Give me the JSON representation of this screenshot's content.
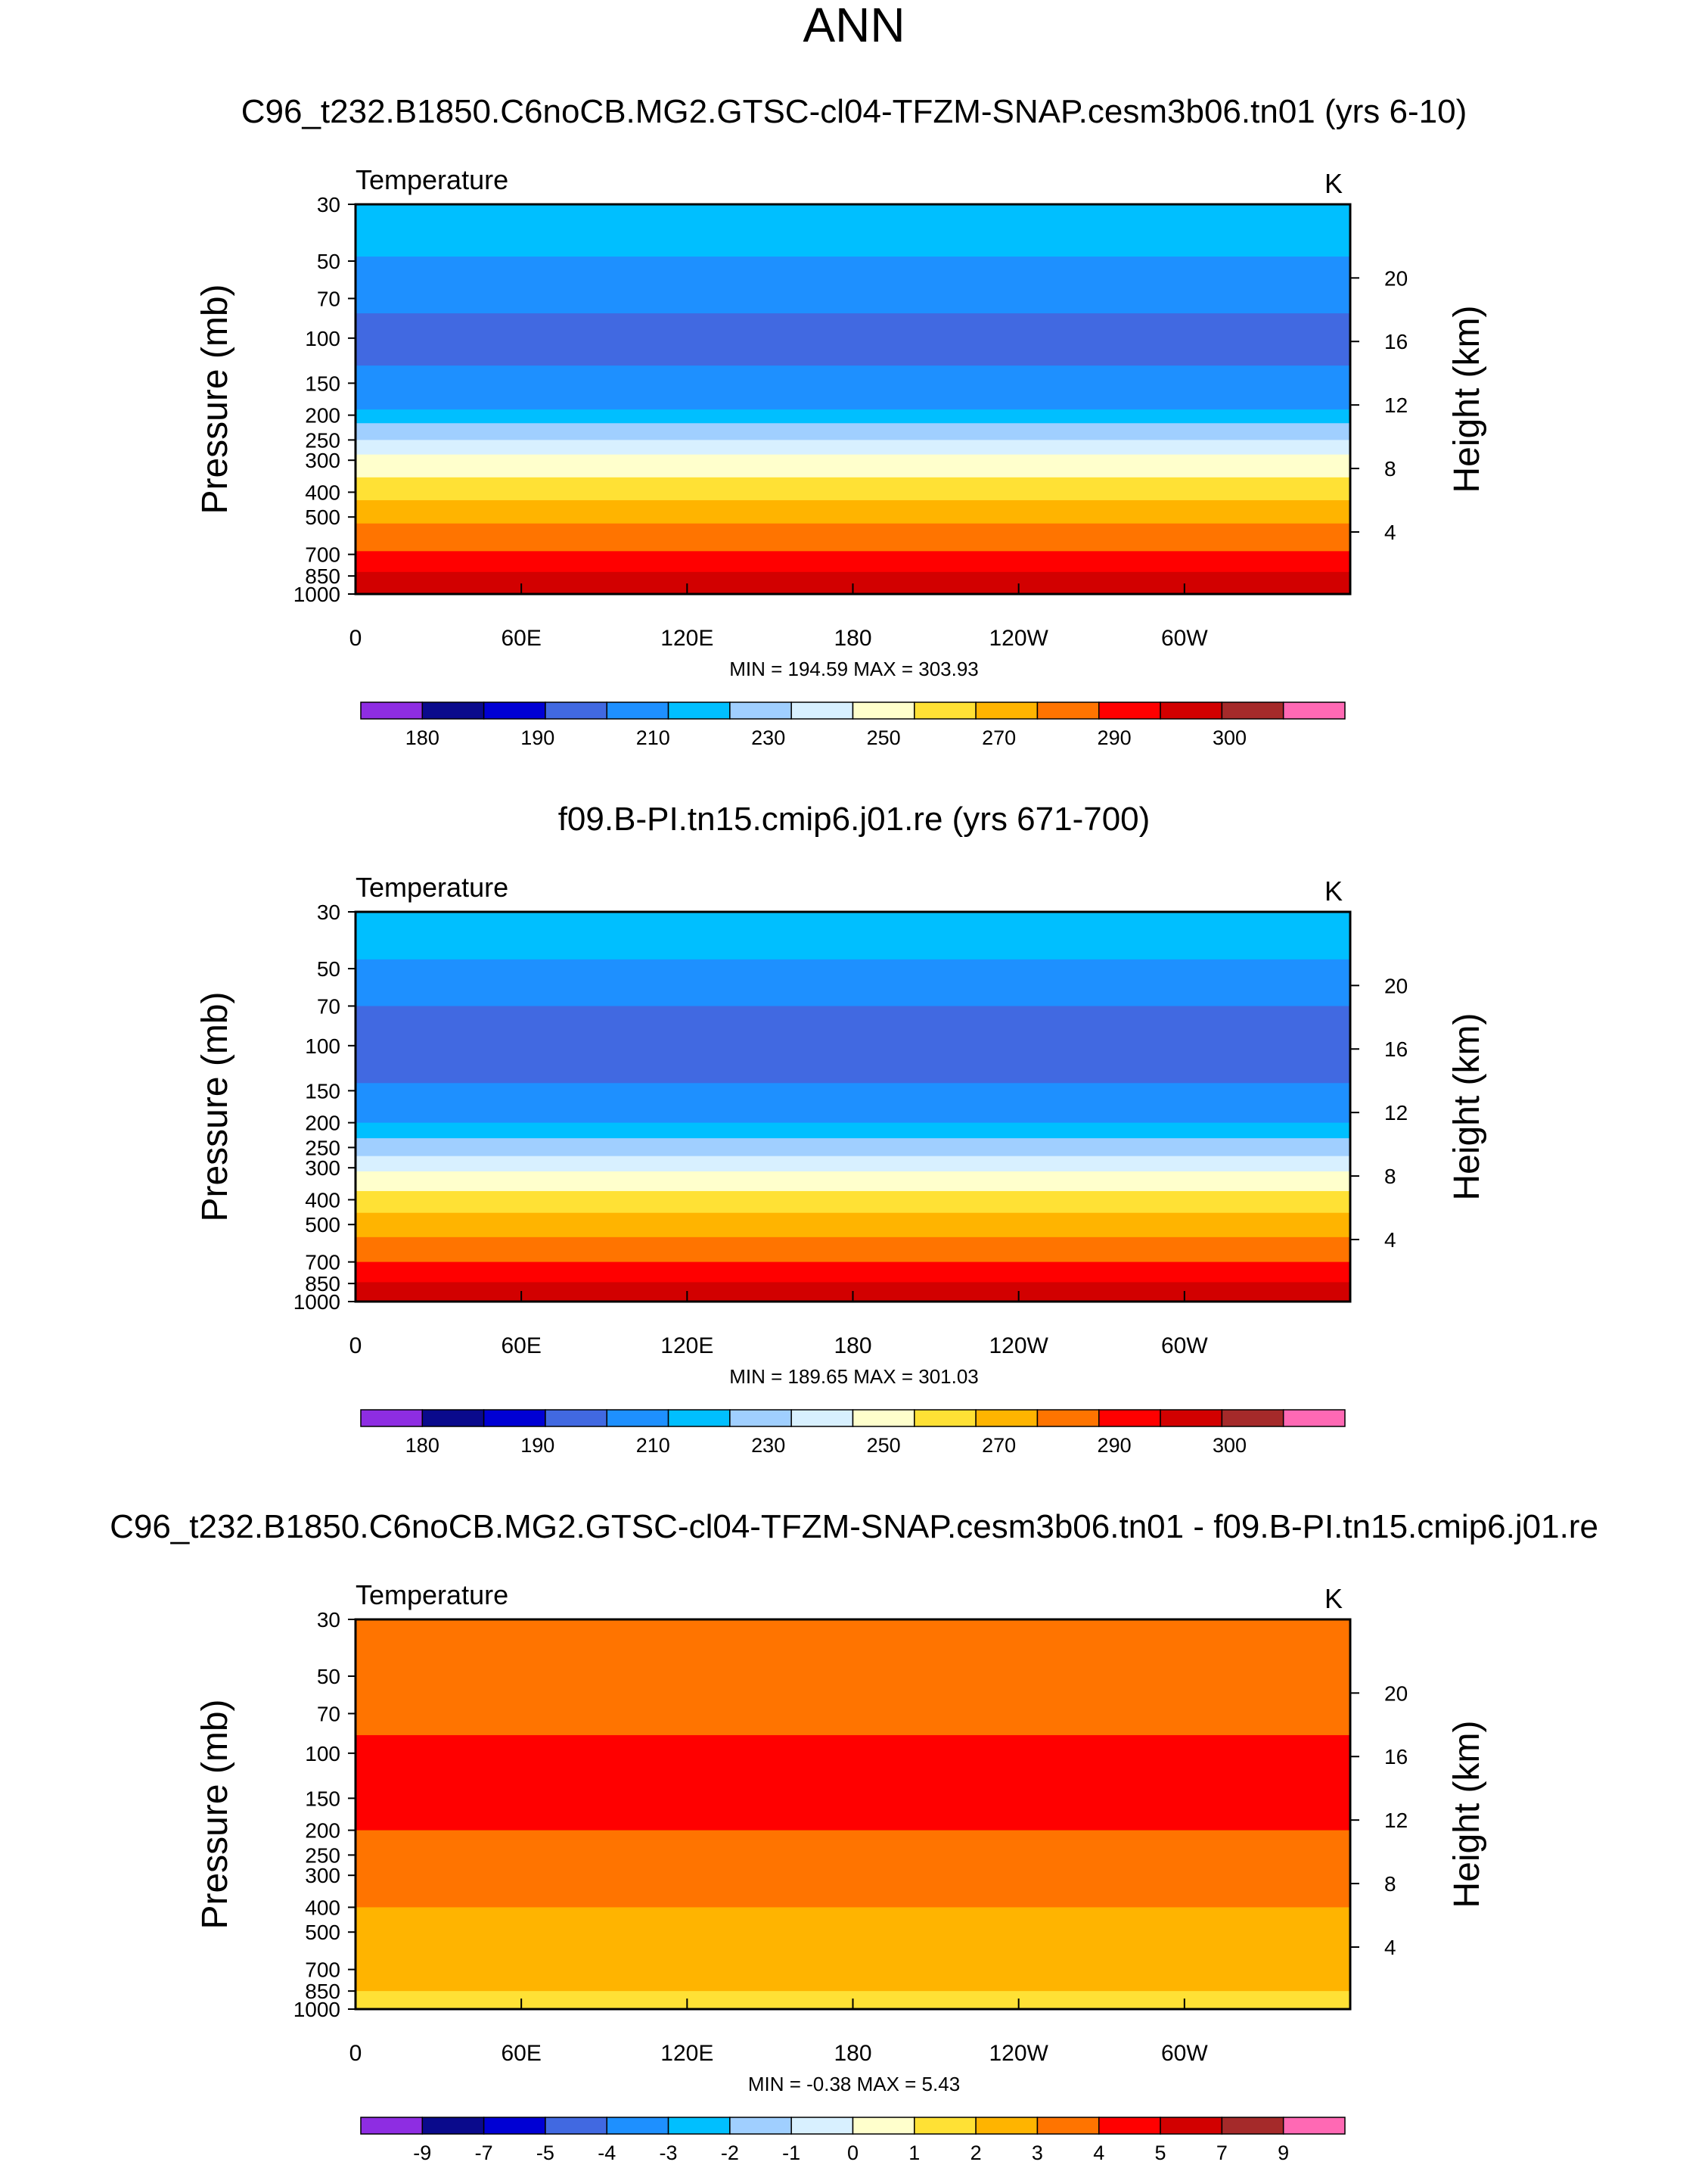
{
  "figure": {
    "title": "ANN"
  },
  "colors": {
    "abs_palette": [
      "#8e2de2",
      "#0a0a8c",
      "#0000d4",
      "#4169e1",
      "#1e90ff",
      "#00bfff",
      "#a0cfff",
      "#d8f0ff",
      "#ffffcc",
      "#ffe135",
      "#ffb400",
      "#ff7400",
      "#ff0000",
      "#d20000",
      "#a52a2a",
      "#ff69b4"
    ],
    "diff_palette": [
      "#8e2de2",
      "#0a0a8c",
      "#0000d4",
      "#4169e1",
      "#1e90ff",
      "#00bfff",
      "#a0cfff",
      "#d8f0ff",
      "#ffffcc",
      "#ffe135",
      "#ffb400",
      "#ff7400",
      "#ff0000",
      "#d20000",
      "#a52a2a",
      "#ff69b4"
    ]
  },
  "chart_data": [
    {
      "type": "heatmap",
      "panel_title": "C96_t232.B1850.C6noCB.MG2.GTSC-cl04-TFZM-SNAP.cesm3b06.tn01 (yrs 6-10)",
      "variable": "Temperature",
      "units": "K",
      "ylabel": "Pressure (mb)",
      "y2label": "Height (km)",
      "x_range_deg": [
        0,
        360
      ],
      "x_ticks": [
        {
          "deg": 0,
          "label": "0"
        },
        {
          "deg": 60,
          "label": "60E"
        },
        {
          "deg": 120,
          "label": "120E"
        },
        {
          "deg": 180,
          "label": "180"
        },
        {
          "deg": 240,
          "label": "120W"
        },
        {
          "deg": 300,
          "label": "60W"
        }
      ],
      "y_range_mb": [
        30,
        1000
      ],
      "y_ticks": [
        30,
        50,
        70,
        100,
        150,
        200,
        250,
        300,
        400,
        500,
        700,
        850,
        1000
      ],
      "y2_ticks_km": [
        20,
        16,
        12,
        8,
        4
      ],
      "stats": "MIN = 194.59  MAX = 303.93",
      "colorbar_labels": [
        "180",
        "190",
        "210",
        "230",
        "250",
        "270",
        "290",
        "300"
      ],
      "contour_bands": [
        {
          "p_top": 30,
          "p_bot": 48,
          "value": 215
        },
        {
          "p_top": 48,
          "p_bot": 80,
          "value": 205
        },
        {
          "p_top": 80,
          "p_bot": 128,
          "value": 195
        },
        {
          "p_top": 128,
          "p_bot": 190,
          "value": 205
        },
        {
          "p_top": 190,
          "p_bot": 215,
          "value": 215
        },
        {
          "p_top": 215,
          "p_bot": 250,
          "value": 225
        },
        {
          "p_top": 250,
          "p_bot": 285,
          "value": 235
        },
        {
          "p_top": 285,
          "p_bot": 350,
          "value": 245
        },
        {
          "p_top": 350,
          "p_bot": 430,
          "value": 255
        },
        {
          "p_top": 430,
          "p_bot": 530,
          "value": 265
        },
        {
          "p_top": 530,
          "p_bot": 680,
          "value": 275
        },
        {
          "p_top": 680,
          "p_bot": 820,
          "value": 285
        },
        {
          "p_top": 820,
          "p_bot": 1000,
          "value": 292
        }
      ]
    },
    {
      "type": "heatmap",
      "panel_title": "f09.B-PI.tn15.cmip6.j01.re (yrs 671-700)",
      "variable": "Temperature",
      "units": "K",
      "ylabel": "Pressure (mb)",
      "y2label": "Height (km)",
      "x_range_deg": [
        0,
        360
      ],
      "x_ticks": [
        {
          "deg": 0,
          "label": "0"
        },
        {
          "deg": 60,
          "label": "60E"
        },
        {
          "deg": 120,
          "label": "120E"
        },
        {
          "deg": 180,
          "label": "180"
        },
        {
          "deg": 240,
          "label": "120W"
        },
        {
          "deg": 300,
          "label": "60W"
        }
      ],
      "y_range_mb": [
        30,
        1000
      ],
      "y_ticks": [
        30,
        50,
        70,
        100,
        150,
        200,
        250,
        300,
        400,
        500,
        700,
        850,
        1000
      ],
      "y2_ticks_km": [
        20,
        16,
        12,
        8,
        4
      ],
      "stats": "MIN = 189.65  MAX = 301.03",
      "colorbar_labels": [
        "180",
        "190",
        "210",
        "230",
        "250",
        "270",
        "290",
        "300"
      ],
      "contour_bands": [
        {
          "p_top": 30,
          "p_bot": 46,
          "value": 215
        },
        {
          "p_top": 46,
          "p_bot": 70,
          "value": 205
        },
        {
          "p_top": 70,
          "p_bot": 140,
          "value": 195
        },
        {
          "p_top": 140,
          "p_bot": 200,
          "value": 205
        },
        {
          "p_top": 200,
          "p_bot": 230,
          "value": 215
        },
        {
          "p_top": 230,
          "p_bot": 270,
          "value": 225
        },
        {
          "p_top": 270,
          "p_bot": 310,
          "value": 235
        },
        {
          "p_top": 310,
          "p_bot": 370,
          "value": 245
        },
        {
          "p_top": 370,
          "p_bot": 450,
          "value": 255
        },
        {
          "p_top": 450,
          "p_bot": 560,
          "value": 265
        },
        {
          "p_top": 560,
          "p_bot": 700,
          "value": 275
        },
        {
          "p_top": 700,
          "p_bot": 840,
          "value": 285
        },
        {
          "p_top": 840,
          "p_bot": 1000,
          "value": 292
        }
      ]
    },
    {
      "type": "heatmap",
      "panel_title": "C96_t232.B1850.C6noCB.MG2.GTSC-cl04-TFZM-SNAP.cesm3b06.tn01 - f09.B-PI.tn15.cmip6.j01.re",
      "variable": "Temperature",
      "units": "K",
      "ylabel": "Pressure (mb)",
      "y2label": "Height (km)",
      "x_range_deg": [
        0,
        360
      ],
      "x_ticks": [
        {
          "deg": 0,
          "label": "0"
        },
        {
          "deg": 60,
          "label": "60E"
        },
        {
          "deg": 120,
          "label": "120E"
        },
        {
          "deg": 180,
          "label": "180"
        },
        {
          "deg": 240,
          "label": "120W"
        },
        {
          "deg": 300,
          "label": "60W"
        }
      ],
      "y_range_mb": [
        30,
        1000
      ],
      "y_ticks": [
        30,
        50,
        70,
        100,
        150,
        200,
        250,
        300,
        400,
        500,
        700,
        850,
        1000
      ],
      "y2_ticks_km": [
        20,
        16,
        12,
        8,
        4
      ],
      "stats": "MIN =  -0.38  MAX =   5.43",
      "colorbar_labels": [
        "-9",
        "-7",
        "-5",
        "-4",
        "-3",
        "-2",
        "-1",
        "0",
        "1",
        "2",
        "3",
        "4",
        "5",
        "7",
        "9"
      ],
      "contour_bands": [
        {
          "p_top": 30,
          "p_bot": 85,
          "value": 3.5
        },
        {
          "p_top": 85,
          "p_bot": 200,
          "value": 4.5
        },
        {
          "p_top": 200,
          "p_bot": 400,
          "value": 3.5
        },
        {
          "p_top": 400,
          "p_bot": 850,
          "value": 2.5
        },
        {
          "p_top": 850,
          "p_bot": 1000,
          "value": 1.5
        }
      ]
    }
  ]
}
